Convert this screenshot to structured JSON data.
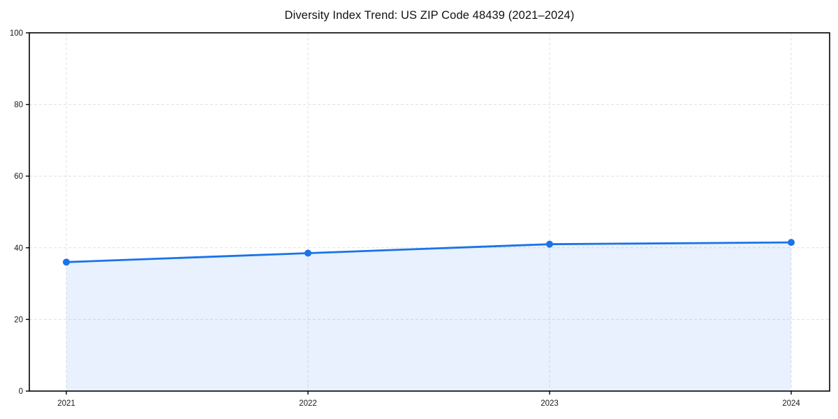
{
  "chart_data": {
    "type": "area",
    "title": "Diversity Index Trend: US ZIP Code 48439 (2021–2024)",
    "x": [
      "2021",
      "2022",
      "2023",
      "2024"
    ],
    "series": [
      {
        "name": "Diversity Index",
        "values": [
          36.0,
          38.5,
          41.0,
          41.5
        ]
      }
    ],
    "xlabel": "",
    "ylabel": "",
    "ylim": [
      0,
      100
    ],
    "yticks": [
      0,
      20,
      40,
      60,
      80,
      100
    ],
    "grid": true,
    "grid_style": "dashed",
    "legend": false,
    "colors": {
      "line": "#1a73e8",
      "marker": "#1a73e8",
      "fill_rgba": "rgba(26,115,232,0.10)",
      "grid": "#e0e0e0",
      "axis": "#000000",
      "text": "#1a1a1a",
      "background": "#ffffff"
    }
  }
}
